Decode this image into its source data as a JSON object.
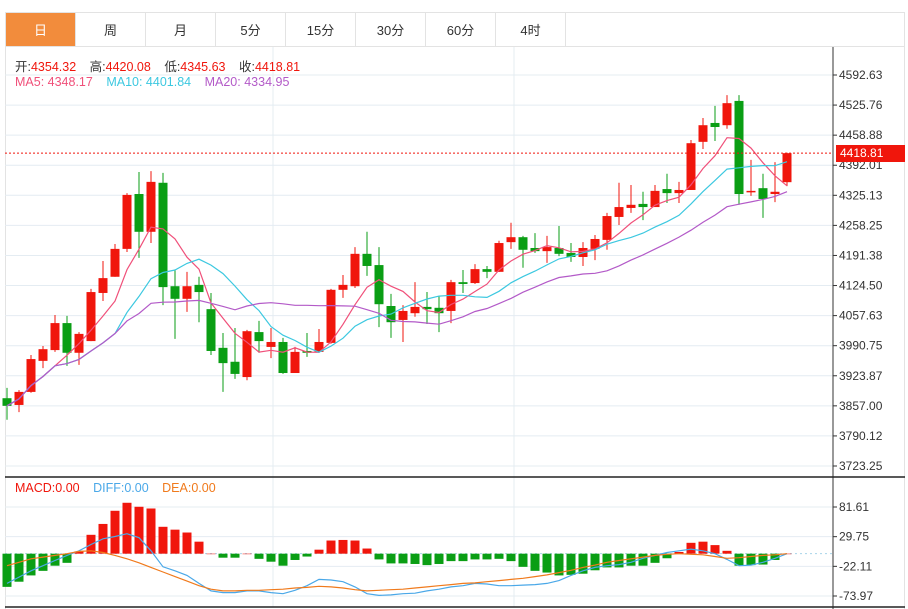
{
  "tabs": [
    {
      "label": "日",
      "active": true
    },
    {
      "label": "周"
    },
    {
      "label": "月"
    },
    {
      "label": "5分"
    },
    {
      "label": "15分"
    },
    {
      "label": "30分"
    },
    {
      "label": "60分"
    },
    {
      "label": "4时"
    }
  ],
  "ohlc": {
    "open_label": "开:",
    "open": "4354.32",
    "high_label": "高:",
    "high": "4420.08",
    "low_label": "低:",
    "low": "4345.63",
    "close_label": "收:",
    "close": "4418.81"
  },
  "ma_legend": {
    "ma5": "MA5: 4348.17",
    "ma10": "MA10: 4401.84",
    "ma20": "MA20: 4334.95"
  },
  "macd_legend": {
    "macd": "MACD:0.00",
    "diff": "DIFF:0.00",
    "dea": "DEA:0.00"
  },
  "colors": {
    "up": "#f0160c",
    "down": "#0a9e14",
    "tab_active": "#f28c3c",
    "ma5": "#f0507a",
    "ma10": "#3cc8e0",
    "ma20": "#b35ac8",
    "diff": "#4aa8e8",
    "dea": "#f07a1c"
  },
  "current_price": "4418.81",
  "chart_data": {
    "type": "candlestick",
    "price_axis": {
      "ticks": [
        "4592.63",
        "4525.76",
        "4458.88",
        "4392.01",
        "4325.13",
        "4258.25",
        "4191.38",
        "4124.50",
        "4057.63",
        "3990.75",
        "3923.87",
        "3857.00",
        "3790.12",
        "3723.25"
      ],
      "range": [
        3723.25,
        4592.63
      ]
    },
    "macd_axis": {
      "ticks": [
        "81.61",
        "29.75",
        "-22.11",
        "-73.97"
      ],
      "range": [
        -73.97,
        81.61
      ]
    },
    "candles": [
      [
        3874,
        3897,
        3826,
        3857
      ],
      [
        3859,
        3892,
        3843,
        3888
      ],
      [
        3888,
        3970,
        3886,
        3961
      ],
      [
        3957,
        3990,
        3941,
        3983
      ],
      [
        3981,
        4059,
        3977,
        4041
      ],
      [
        4041,
        4057,
        3946,
        3975
      ],
      [
        3975,
        4021,
        3948,
        4017
      ],
      [
        4001,
        4117,
        4001,
        4110
      ],
      [
        4108,
        4179,
        4090,
        4141
      ],
      [
        4144,
        4217,
        4144,
        4206
      ],
      [
        4206,
        4330,
        4199,
        4326
      ],
      [
        4328,
        4377,
        4186,
        4244
      ],
      [
        4244,
        4379,
        4219,
        4355
      ],
      [
        4353,
        4375,
        4081,
        4121
      ],
      [
        4123,
        4159,
        4006,
        4095
      ],
      [
        4095,
        4155,
        4066,
        4123
      ],
      [
        4126,
        4144,
        4043,
        4110
      ],
      [
        4072,
        4108,
        3970,
        3979
      ],
      [
        3986,
        4019,
        3888,
        3952
      ],
      [
        3955,
        4030,
        3917,
        3928
      ],
      [
        3921,
        4026,
        3914,
        4023
      ],
      [
        4021,
        4046,
        3975,
        4001
      ],
      [
        3988,
        4030,
        3963,
        3999
      ],
      [
        3999,
        4008,
        3928,
        3930
      ],
      [
        3930,
        3988,
        3930,
        3977
      ],
      [
        3979,
        4019,
        3966,
        3975
      ],
      [
        3977,
        4028,
        3975,
        3999
      ],
      [
        3997,
        4117,
        3995,
        4115
      ],
      [
        4115,
        4148,
        4097,
        4126
      ],
      [
        4123,
        4210,
        4119,
        4195
      ],
      [
        4195,
        4244,
        4146,
        4168
      ],
      [
        4170,
        4210,
        4032,
        4083
      ],
      [
        4079,
        4106,
        4008,
        4043
      ],
      [
        4048,
        4081,
        3999,
        4068
      ],
      [
        4063,
        4132,
        4055,
        4077
      ],
      [
        4077,
        4110,
        4039,
        4072
      ],
      [
        4075,
        4101,
        4021,
        4063
      ],
      [
        4068,
        4137,
        4041,
        4132
      ],
      [
        4132,
        4159,
        4108,
        4128
      ],
      [
        4130,
        4172,
        4128,
        4161
      ],
      [
        4161,
        4168,
        4141,
        4155
      ],
      [
        4155,
        4224,
        4155,
        4219
      ],
      [
        4221,
        4264,
        4206,
        4232
      ],
      [
        4232,
        4235,
        4164,
        4204
      ],
      [
        4208,
        4241,
        4197,
        4201
      ],
      [
        4201,
        4235,
        4175,
        4210
      ],
      [
        4208,
        4257,
        4190,
        4195
      ],
      [
        4197,
        4219,
        4177,
        4188
      ],
      [
        4188,
        4221,
        4168,
        4208
      ],
      [
        4206,
        4237,
        4181,
        4228
      ],
      [
        4226,
        4286,
        4204,
        4279
      ],
      [
        4277,
        4353,
        4259,
        4299
      ],
      [
        4297,
        4348,
        4286,
        4304
      ],
      [
        4306,
        4333,
        4270,
        4299
      ],
      [
        4299,
        4348,
        4299,
        4335
      ],
      [
        4339,
        4373,
        4308,
        4330
      ],
      [
        4330,
        4355,
        4308,
        4337
      ],
      [
        4337,
        4448,
        4337,
        4441
      ],
      [
        4444,
        4497,
        4428,
        4481
      ],
      [
        4486,
        4524,
        4446,
        4477
      ],
      [
        4481,
        4548,
        4473,
        4530
      ],
      [
        4535,
        4548,
        4304,
        4328
      ],
      [
        4333,
        4404,
        4324,
        4335
      ],
      [
        4341,
        4373,
        4275,
        4317
      ],
      [
        4328,
        4399,
        4310,
        4333
      ],
      [
        4354.32,
        4420.08,
        4345.63,
        4418.81
      ]
    ],
    "candle_format": [
      "open",
      "high",
      "low",
      "close"
    ],
    "macd_hist": [
      -58,
      -49,
      -38,
      -30,
      -21,
      -16,
      4,
      33,
      52,
      75,
      89,
      82,
      79,
      47,
      42,
      37,
      21,
      0,
      -7,
      -7,
      0,
      -9,
      -14,
      -21,
      -11,
      -5,
      7,
      23,
      24,
      23,
      9,
      -10,
      -17,
      -17,
      -18,
      -20,
      -18,
      -13,
      -13,
      -10,
      -10,
      -9,
      -13,
      -23,
      -30,
      -33,
      -38,
      -37,
      -35,
      -29,
      -24,
      -24,
      -21,
      -21,
      -16,
      -8,
      3,
      19,
      21,
      15,
      5,
      -21,
      -20,
      -19,
      -11,
      0
    ],
    "diff": [
      -52,
      -41,
      -30,
      -21,
      -12,
      -3,
      5,
      16,
      26,
      30,
      35,
      28,
      5,
      -23,
      -30,
      -38,
      -52,
      -65,
      -68,
      -68,
      -65,
      -65,
      -68,
      -70,
      -64,
      -56,
      -45,
      -46,
      -49,
      -58,
      -70,
      -73,
      -72,
      -70,
      -69,
      -65,
      -62,
      -58,
      -56,
      -52,
      -53,
      -56,
      -56,
      -55,
      -54,
      -52,
      -47,
      -38,
      -30,
      -24,
      -21,
      -19,
      -15,
      -8,
      -3,
      2,
      5,
      8,
      5,
      0,
      -10,
      -21,
      -20,
      -15,
      -8,
      0
    ],
    "dea": [
      -21,
      -15,
      -9,
      -6,
      -3,
      0,
      4,
      5,
      2,
      -3,
      -9,
      -16,
      -24,
      -32,
      -40,
      -48,
      -56,
      -62,
      -65,
      -65,
      -64,
      -64,
      -63,
      -62,
      -60,
      -59,
      -57,
      -58,
      -60,
      -63,
      -65,
      -64,
      -63,
      -62,
      -60,
      -58,
      -56,
      -54,
      -52,
      -51,
      -49,
      -47,
      -45,
      -43,
      -40,
      -37,
      -33,
      -29,
      -24,
      -20,
      -15,
      -12,
      -9,
      -6,
      -3,
      -1,
      0,
      -1,
      -2,
      -5,
      -8,
      -7,
      -5,
      -3,
      -2,
      0
    ]
  }
}
